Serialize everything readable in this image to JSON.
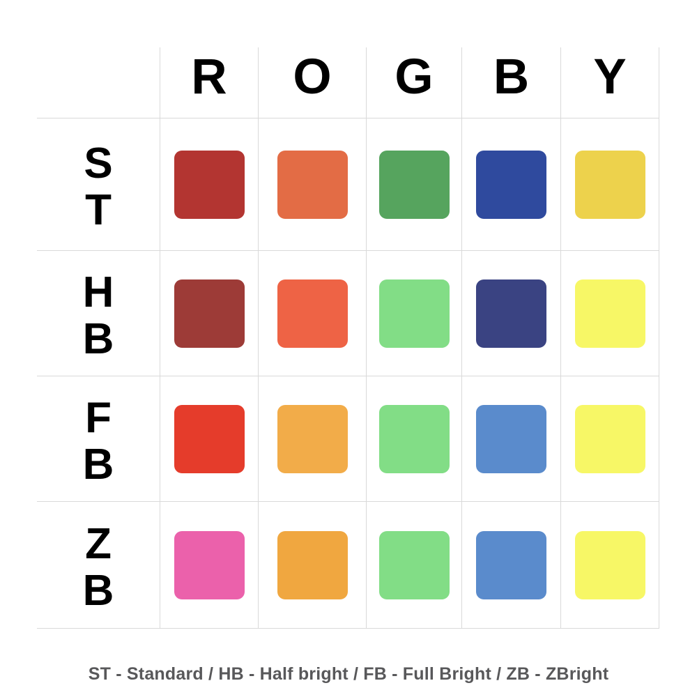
{
  "chart_data": {
    "type": "table",
    "description": "Color palette comparison grid: rows are brightness modes, columns are base colors, each cell is a rounded color swatch",
    "columns": [
      "R",
      "O",
      "G",
      "B",
      "Y"
    ],
    "rows": [
      "ST",
      "HB",
      "FB",
      "ZB"
    ],
    "cells": {
      "ST": {
        "R": "#b33531",
        "O": "#e36c45",
        "G": "#56a45e",
        "B": "#2f4a9e",
        "Y": "#edd24c"
      },
      "HB": {
        "R": "#9d3b37",
        "O": "#ee6345",
        "G": "#82dd86",
        "B": "#3a4382",
        "Y": "#f7f766"
      },
      "FB": {
        "R": "#e53c2b",
        "O": "#f2ac49",
        "G": "#82dd86",
        "B": "#5a8bcc",
        "Y": "#f7f766"
      },
      "ZB": {
        "R": "#eb61ab",
        "O": "#f0a740",
        "G": "#82dd86",
        "B": "#5a8bcc",
        "Y": "#f7f766"
      }
    },
    "legend": "ST - Standard / HB - Half bright / FB - Full Bright / ZB - ZBright"
  },
  "colors": {
    "background": "#ffffff",
    "gridline": "#d9d9d9",
    "header_text": "#000000",
    "legend_text": "#58585a"
  }
}
